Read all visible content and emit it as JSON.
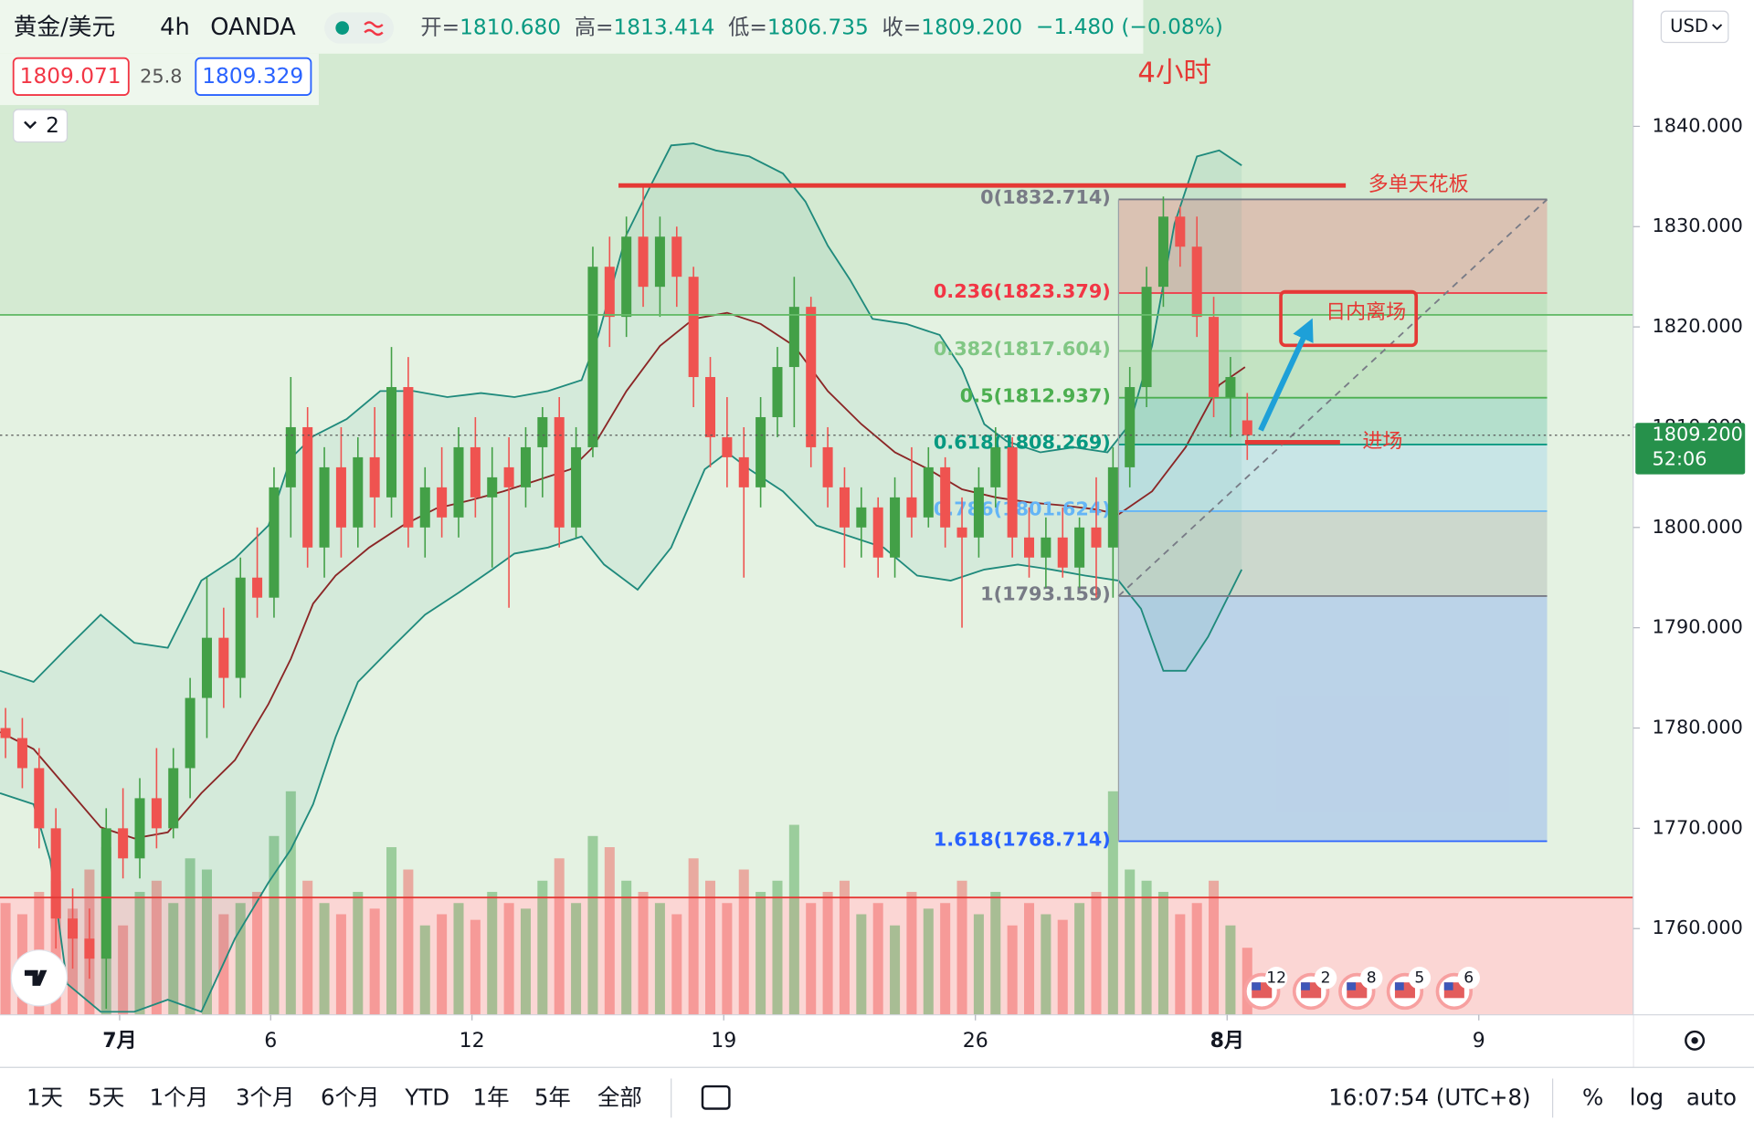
{
  "header": {
    "symbol": "黄金/美元",
    "interval": "4h",
    "source": "OANDA",
    "ohlc": [
      {
        "label": "开=",
        "value": "1810.680"
      },
      {
        "label": "高=",
        "value": "1813.414"
      },
      {
        "label": "低=",
        "value": "1806.735"
      },
      {
        "label": "收=",
        "value": "1809.200"
      }
    ],
    "change": "−1.480 (−0.08%)",
    "bid": "1809.071",
    "spread": "25.8",
    "ask": "1809.329",
    "indicators_count": "2",
    "currency": "USD"
  },
  "chart_data": {
    "type": "candlestick",
    "title": "4小时",
    "up_color": "#43a047",
    "down_color": "#ef5350",
    "candles": [
      [
        1780,
        1782,
        1777,
        1779
      ],
      [
        1779,
        1781,
        1774,
        1776
      ],
      [
        1776,
        1778,
        1768,
        1770
      ],
      [
        1770,
        1772,
        1758,
        1761
      ],
      [
        1761,
        1764,
        1756,
        1759
      ],
      [
        1759,
        1762,
        1755,
        1757
      ],
      [
        1757,
        1772,
        1752,
        1770
      ],
      [
        1770,
        1774,
        1765,
        1767
      ],
      [
        1767,
        1775,
        1765,
        1773
      ],
      [
        1773,
        1778,
        1768,
        1770
      ],
      [
        1770,
        1778,
        1769,
        1776
      ],
      [
        1776,
        1785,
        1773,
        1783
      ],
      [
        1783,
        1795,
        1779,
        1789
      ],
      [
        1789,
        1792,
        1782,
        1785
      ],
      [
        1785,
        1797,
        1783,
        1795
      ],
      [
        1795,
        1800,
        1791,
        1793
      ],
      [
        1793,
        1806,
        1791,
        1804
      ],
      [
        1804,
        1815,
        1799,
        1810
      ],
      [
        1810,
        1812,
        1796,
        1798
      ],
      [
        1798,
        1808,
        1795,
        1806
      ],
      [
        1806,
        1810,
        1797,
        1800
      ],
      [
        1800,
        1809,
        1798,
        1807
      ],
      [
        1807,
        1812,
        1800,
        1803
      ],
      [
        1803,
        1818,
        1801,
        1814
      ],
      [
        1814,
        1817,
        1798,
        1800
      ],
      [
        1800,
        1806,
        1797,
        1804
      ],
      [
        1804,
        1808,
        1799,
        1801
      ],
      [
        1801,
        1810,
        1799,
        1808
      ],
      [
        1808,
        1811,
        1801,
        1803
      ],
      [
        1803,
        1808,
        1796,
        1805
      ],
      [
        1806,
        1809,
        1792,
        1804
      ],
      [
        1804,
        1810,
        1802,
        1808
      ],
      [
        1808,
        1812,
        1803,
        1811
      ],
      [
        1811,
        1813,
        1798,
        1800
      ],
      [
        1800,
        1810,
        1799,
        1808
      ],
      [
        1808,
        1828,
        1807,
        1826
      ],
      [
        1826,
        1829,
        1818,
        1821
      ],
      [
        1821,
        1831,
        1819,
        1829
      ],
      [
        1829,
        1834,
        1822,
        1824
      ],
      [
        1824,
        1831,
        1821,
        1829
      ],
      [
        1829,
        1830,
        1822,
        1825
      ],
      [
        1825,
        1826,
        1812,
        1815
      ],
      [
        1815,
        1817,
        1806,
        1809
      ],
      [
        1809,
        1813,
        1804,
        1807
      ],
      [
        1807,
        1810,
        1795,
        1804
      ],
      [
        1804,
        1813,
        1802,
        1811
      ],
      [
        1811,
        1818,
        1809,
        1816
      ],
      [
        1816,
        1825,
        1810,
        1822
      ],
      [
        1822,
        1823,
        1806,
        1808
      ],
      [
        1808,
        1810,
        1802,
        1804
      ],
      [
        1804,
        1806,
        1796,
        1800
      ],
      [
        1800,
        1804,
        1797,
        1802
      ],
      [
        1802,
        1803,
        1795,
        1797
      ],
      [
        1797,
        1805,
        1795,
        1803
      ],
      [
        1803,
        1808,
        1799,
        1801
      ],
      [
        1801,
        1808,
        1800,
        1806
      ],
      [
        1806,
        1807,
        1798,
        1800
      ],
      [
        1800,
        1803,
        1790,
        1799
      ],
      [
        1799,
        1806,
        1797,
        1804
      ],
      [
        1804,
        1810,
        1802,
        1808
      ],
      [
        1808,
        1809,
        1797,
        1799
      ],
      [
        1799,
        1802,
        1795,
        1797
      ],
      [
        1797,
        1801,
        1794,
        1799
      ],
      [
        1799,
        1802,
        1795,
        1796
      ],
      [
        1796,
        1801,
        1794,
        1800
      ],
      [
        1800,
        1805,
        1793,
        1798
      ],
      [
        1798,
        1808,
        1793,
        1806
      ],
      [
        1806,
        1816,
        1804,
        1814
      ],
      [
        1814,
        1826,
        1812,
        1824
      ],
      [
        1824,
        1833,
        1822,
        1831
      ],
      [
        1831,
        1832,
        1826,
        1828
      ],
      [
        1828,
        1831,
        1819,
        1821
      ],
      [
        1821,
        1823,
        1811,
        1813
      ],
      [
        1813,
        1817,
        1809,
        1815
      ],
      [
        1810.68,
        1813.414,
        1806.735,
        1809.2
      ]
    ],
    "volumes": [
      100,
      90,
      110,
      120,
      95,
      130,
      150,
      80,
      110,
      120,
      100,
      140,
      130,
      90,
      100,
      110,
      160,
      200,
      120,
      100,
      90,
      110,
      95,
      150,
      130,
      80,
      90,
      100,
      85,
      110,
      100,
      95,
      120,
      140,
      100,
      160,
      150,
      120,
      110,
      100,
      90,
      140,
      120,
      100,
      130,
      110,
      120,
      170,
      100,
      110,
      120,
      90,
      100,
      80,
      110,
      95,
      100,
      120,
      90,
      110,
      80,
      100,
      90,
      85,
      100,
      110,
      200,
      130,
      120,
      110,
      90,
      100,
      120,
      80,
      60
    ],
    "vlim": [
      0,
      250
    ],
    "bands": {
      "color": "#1f8a7c",
      "upper": {
        "x": [
          -0.33,
          1.67,
          3.67,
          5.67,
          7.67,
          9.67,
          11.67,
          13.67,
          15.67,
          17,
          18.33,
          20.33,
          22.33,
          24.33,
          26.33,
          28.33,
          30.33,
          32.33,
          34.33,
          35.33,
          37,
          38.33,
          39.67,
          41,
          42.33,
          44.33,
          46.33,
          47.67,
          49,
          50.33,
          51.67,
          53.67,
          55.67,
          57,
          58.33,
          59.67,
          61.67,
          63.67,
          65.67,
          67,
          68.33,
          69.67,
          71,
          72.33,
          73.67
        ],
        "values": [
          1785.7,
          1784.6,
          1788.0,
          1791.3,
          1788.5,
          1788.0,
          1794.7,
          1796.9,
          1800.2,
          1806.9,
          1809.1,
          1810.8,
          1813.6,
          1813.6,
          1813.0,
          1813.4,
          1813.0,
          1813.6,
          1814.7,
          1819.2,
          1829.2,
          1833.7,
          1838.1,
          1838.3,
          1837.6,
          1837.0,
          1835.3,
          1832.5,
          1828.1,
          1824.7,
          1820.8,
          1820.3,
          1819.2,
          1815.8,
          1810.3,
          1808.6,
          1807.5,
          1808.0,
          1807.5,
          1810.3,
          1818.1,
          1830.3,
          1837.0,
          1837.6,
          1836.1
        ]
      },
      "middle": {
        "color": "#8b2626",
        "x": [
          -0.33,
          1.67,
          3.67,
          5.67,
          7.67,
          9.67,
          11.67,
          13.67,
          15.67,
          17,
          18.33,
          19.67,
          21.67,
          23.67,
          25.67,
          27.67,
          29.67,
          31.67,
          33.67,
          35,
          37,
          39,
          41,
          43,
          45,
          47,
          49,
          51,
          53,
          55,
          57,
          59,
          61,
          63,
          65,
          66.33,
          68.33,
          70.33,
          72.33,
          73.87
        ],
        "values": [
          1779.6,
          1777.9,
          1774.0,
          1770.1,
          1769.0,
          1769.6,
          1773.5,
          1776.8,
          1782.4,
          1786.9,
          1792.4,
          1795.2,
          1798.0,
          1800.2,
          1801.9,
          1802.7,
          1803.6,
          1804.7,
          1805.8,
          1808.0,
          1813.6,
          1818.1,
          1820.8,
          1821.4,
          1820.3,
          1818.1,
          1813.6,
          1810.3,
          1807.5,
          1805.8,
          1803.8,
          1803.0,
          1802.5,
          1802.2,
          1801.8,
          1801.3,
          1803.6,
          1808.0,
          1814.2,
          1816.0
        ]
      },
      "lower": {
        "x": [
          -0.33,
          1.67,
          2.67,
          3.67,
          5.67,
          7.67,
          9.67,
          11.67,
          13.67,
          15.67,
          17,
          18.33,
          19.67,
          21,
          23,
          25,
          27,
          29,
          30.33,
          32.33,
          34.33,
          35.67,
          37.67,
          39.67,
          41.67,
          43,
          44.33,
          46.33,
          48.33,
          50.33,
          52.33,
          54.33,
          56.33,
          58.33,
          60.33,
          62.33,
          64.33,
          66.33,
          67.67,
          69,
          70.33,
          71.67,
          73.67
        ],
        "values": [
          1773.5,
          1772.4,
          1766.8,
          1754.5,
          1751.7,
          1751.7,
          1752.9,
          1751.7,
          1759.0,
          1764.6,
          1767.9,
          1772.4,
          1779.1,
          1784.6,
          1788.0,
          1791.3,
          1793.5,
          1795.8,
          1797.4,
          1798.0,
          1799.1,
          1796.3,
          1793.8,
          1798.0,
          1805.8,
          1807.5,
          1805.8,
          1803.6,
          1800.2,
          1799.1,
          1798.0,
          1795.2,
          1794.7,
          1795.8,
          1796.3,
          1795.8,
          1795.2,
          1794.7,
          1791.9,
          1785.7,
          1785.7,
          1789.1,
          1795.8
        ]
      }
    },
    "xlim": [
      -0.33,
      97
    ],
    "xticks": [
      {
        "value": 6.8,
        "label": "7月"
      },
      {
        "value": 15.8,
        "label": "6"
      },
      {
        "value": 27.8,
        "label": "12"
      },
      {
        "value": 42.8,
        "label": "19"
      },
      {
        "value": 57.8,
        "label": "26"
      },
      {
        "value": 72.8,
        "label": "8月"
      },
      {
        "value": 87.8,
        "label": "9"
      }
    ],
    "ylim": [
      1751.4,
      1852.6
    ],
    "yticks": [
      {
        "value": 1840,
        "label": "1840.000"
      },
      {
        "value": 1830,
        "label": "1830.000"
      },
      {
        "value": 1820,
        "label": "1820.000"
      },
      {
        "value": 1810,
        "label": "1810.000"
      },
      {
        "value": 1800,
        "label": "1800.000"
      },
      {
        "value": 1790,
        "label": "1790.000"
      },
      {
        "value": 1780,
        "label": "1780.000"
      },
      {
        "value": 1770,
        "label": "1770.000"
      },
      {
        "value": 1760,
        "label": "1760.000"
      }
    ],
    "last_price": {
      "value": 1809.2,
      "label": "1809.200",
      "countdown": "52:06",
      "color": "#26914b"
    },
    "zones": [
      {
        "value": 1821.2,
        "color": "#66bb6a"
      },
      {
        "value": 1763.1,
        "color": "#e53935"
      }
    ],
    "fib": {
      "x": [
        66.33,
        91.87
      ],
      "levels": [
        {
          "ratio": 0,
          "value": 1832.714,
          "label": "0(1832.714)",
          "color": "#787b86"
        },
        {
          "ratio": 0.236,
          "value": 1823.379,
          "label": "0.236(1823.379)",
          "color": "#f23645"
        },
        {
          "ratio": 0.382,
          "value": 1817.604,
          "label": "0.382(1817.604)",
          "color": "#81c784"
        },
        {
          "ratio": 0.5,
          "value": 1812.937,
          "label": "0.5(1812.937)",
          "color": "#4caf50"
        },
        {
          "ratio": 0.618,
          "value": 1808.269,
          "label": "0.618(1808.269)",
          "color": "#089981"
        },
        {
          "ratio": 0.786,
          "value": 1801.624,
          "label": "0.786(1801.624)",
          "color": "#64b5f6"
        },
        {
          "ratio": 1,
          "value": 1793.159,
          "label": "1(1793.159)",
          "color": "#787b86"
        },
        {
          "ratio": 1.618,
          "value": 1768.714,
          "label": "1.618(1768.714)",
          "color": "#2962ff"
        }
      ]
    },
    "annotations": {
      "ceiling": {
        "text": "多单天花板",
        "value": 1834.1,
        "x": [
          36.53,
          79.87
        ],
        "color": "#e53935"
      },
      "entry": {
        "text": "进场",
        "value": 1808.5,
        "x": [
          73.87,
          79.53
        ],
        "color": "#e53935"
      },
      "exit": {
        "text": "日内离场",
        "color": "#e53935"
      }
    }
  },
  "events": [
    "12",
    "2",
    "8",
    "5",
    "6"
  ],
  "toolbar": {
    "ranges": [
      "1天",
      "5天",
      "1个月",
      "3个月",
      "6个月",
      "YTD",
      "1年",
      "5年",
      "全部"
    ],
    "time": "16:07:54 (UTC+8)",
    "options": [
      "%",
      "log",
      "auto"
    ]
  }
}
